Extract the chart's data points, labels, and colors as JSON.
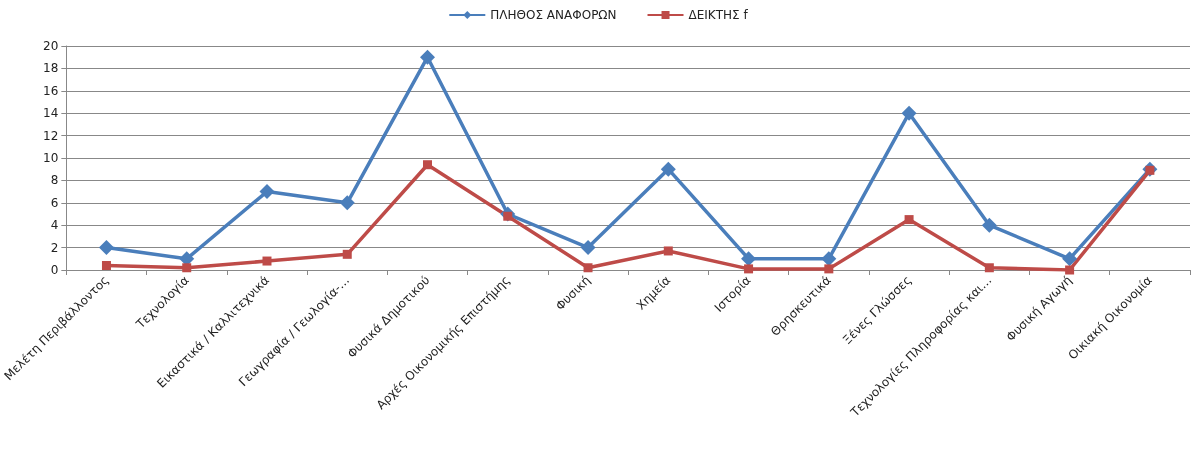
{
  "chart_data": {
    "type": "line",
    "categories": [
      "Μελέτη Περιβάλλοντος",
      "Τεχνολογία",
      "Εικαστικά / Καλλιτεχνικά",
      "Γεωγραφία / Γεωλογία-…",
      "Φυσικά Δημοτικού",
      "Αρχές Οικονομικής Επιστήμης",
      "Φυσική",
      "Χημεία",
      "Ιστορία",
      "Θρησκευτικά",
      "Ξένες Γλώσσες",
      "Τεχνολογίες Πληροφορίας και…",
      "Φυσική Αγωγή",
      "Οικιακή Οικονομία"
    ],
    "series": [
      {
        "name": "ΠΛΗΘΟΣ ΑΝΑΦΟΡΩΝ",
        "color": "#4a7ebb",
        "marker": "diamond",
        "values": [
          2,
          1,
          7,
          6,
          19,
          5,
          2,
          9,
          1,
          1,
          14,
          4,
          1,
          9
        ]
      },
      {
        "name": "ΔΕΙΚΤΗΣ f",
        "color": "#be4b48",
        "marker": "square",
        "values": [
          0.4,
          0.2,
          0.8,
          1.4,
          9.4,
          4.8,
          0.2,
          1.7,
          0.1,
          0.1,
          4.5,
          0.2,
          0,
          8.9
        ]
      }
    ],
    "ylim": [
      0,
      20
    ],
    "yticks": [
      0,
      2,
      4,
      6,
      8,
      10,
      12,
      14,
      16,
      18,
      20
    ],
    "grid": "y",
    "legend": "top",
    "line_style": "solid"
  }
}
